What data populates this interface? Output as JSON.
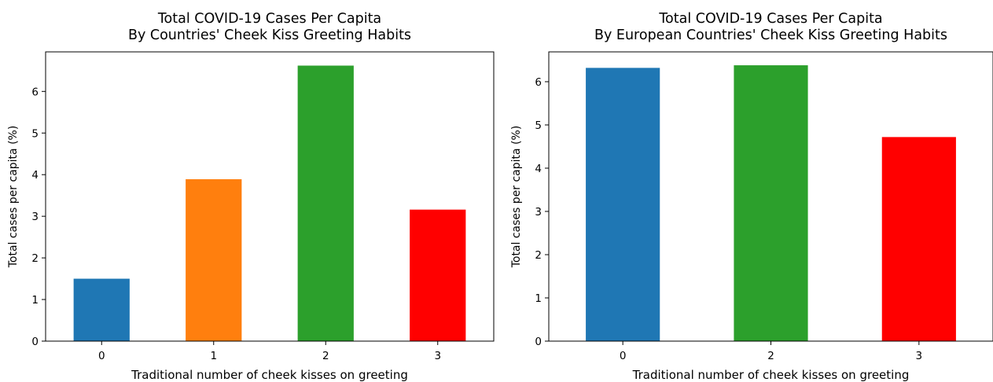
{
  "chart_data": [
    {
      "type": "bar",
      "title": "Total COVID-19 Cases Per Capita\nBy Countries' Cheek Kiss Greeting Habits",
      "xlabel": "Traditional number of cheek kisses on greeting",
      "ylabel": "Total cases per capita (%)",
      "categories": [
        "0",
        "1",
        "2",
        "3"
      ],
      "values": [
        1.5,
        3.89,
        6.62,
        3.16
      ],
      "colors": [
        "#1f77b4",
        "#ff7f0e",
        "#2ca02c",
        "#ff0000"
      ],
      "ylim": [
        0,
        6.95
      ],
      "yticks": [
        0,
        1,
        2,
        3,
        4,
        5,
        6
      ],
      "grid": false
    },
    {
      "type": "bar",
      "title": "Total COVID-19 Cases Per Capita\nBy European Countries' Cheek Kiss Greeting Habits",
      "xlabel": "Traditional number of cheek kisses on greeting",
      "ylabel": "Total cases per capita (%)",
      "categories": [
        "0",
        "2",
        "3"
      ],
      "values": [
        6.32,
        6.38,
        4.72
      ],
      "colors": [
        "#1f77b4",
        "#2ca02c",
        "#ff0000"
      ],
      "ylim": [
        0,
        6.69
      ],
      "yticks": [
        0,
        1,
        2,
        3,
        4,
        5,
        6
      ],
      "grid": false
    }
  ]
}
